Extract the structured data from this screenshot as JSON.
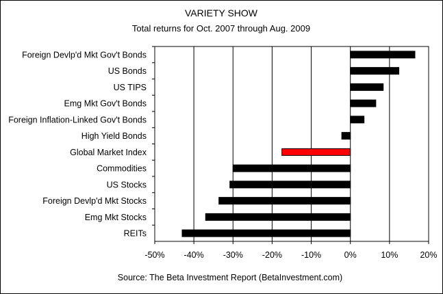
{
  "chart_data": {
    "type": "bar",
    "orientation": "horizontal",
    "title": "VARIETY SHOW",
    "subtitle": "Total returns for Oct. 2007 through Aug. 2009",
    "source": "Source: The Beta Investment Report (BetaInvestment.com)",
    "categories": [
      "Foreign Devlp'd Mkt Gov't Bonds",
      "US Bonds",
      "US TIPS",
      "Emg Mkt Gov't Bonds",
      "Foreign Inflation-Linked Gov't Bonds",
      "High Yield Bonds",
      "Global Market Index",
      "Commodities",
      "US Stocks",
      "Foreign Devlp'd Mkt Stocks",
      "Emg Mkt Stocks",
      "REITs"
    ],
    "values": [
      16.5,
      12.4,
      8.4,
      6.5,
      3.5,
      -2.2,
      -17.5,
      -30.0,
      -30.8,
      -33.6,
      -37.0,
      -43.0
    ],
    "highlight": "Global Market Index",
    "xlim": [
      -50,
      20
    ],
    "xticks": [
      "-50%",
      "-40%",
      "-30%",
      "-20%",
      "-10%",
      "0%",
      "10%",
      "20%"
    ],
    "grid": "vertical",
    "colors": {
      "bar": "#000000",
      "highlight": "#ff0000"
    }
  }
}
